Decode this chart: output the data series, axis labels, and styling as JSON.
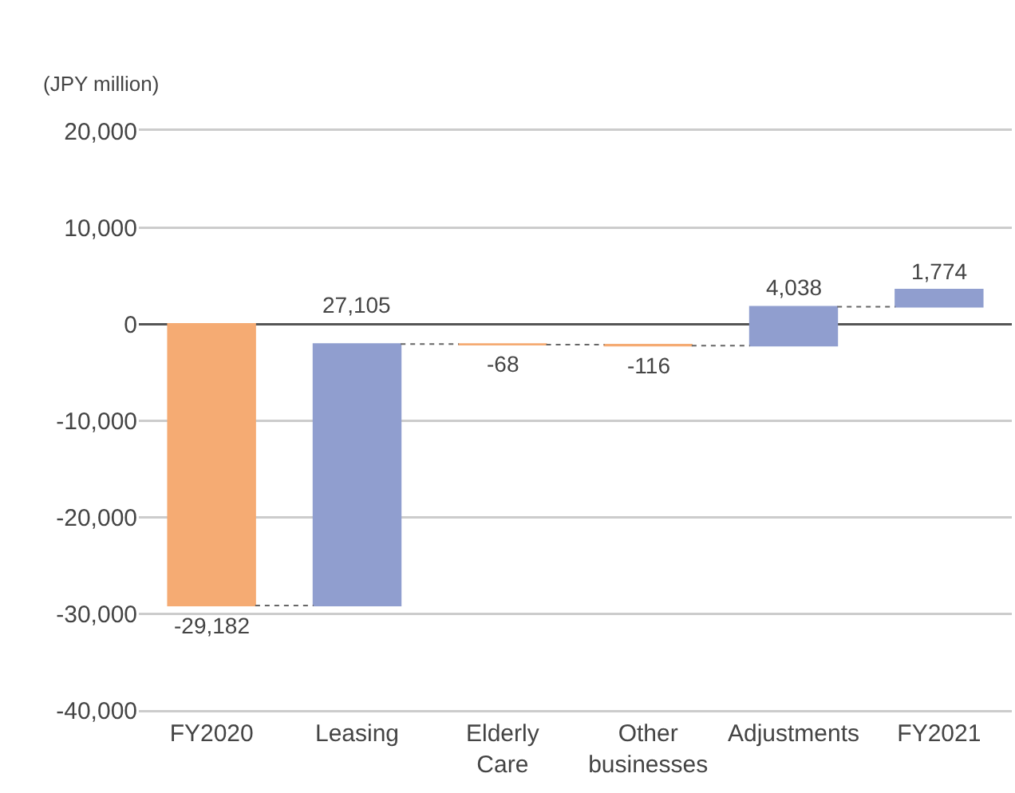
{
  "chart_data": {
    "type": "bar",
    "ylabel": "(JPY million)",
    "categories": [
      "FY2020",
      "Leasing",
      "Elderly Care",
      "Other businesses",
      "Adjustments",
      "FY2021"
    ],
    "values": [
      -29182,
      27105,
      -68,
      -116,
      4038,
      1774
    ],
    "base": [
      0,
      -29182,
      -2077,
      -2145,
      -2261,
      1777
    ],
    "colors": [
      "#f5ab73",
      "#909ecf",
      "#f5ab73",
      "#f5ab73",
      "#909ecf",
      "#909ecf"
    ],
    "value_labels": [
      "-29,182",
      "27,105",
      "-68",
      "-116",
      "4,038",
      "1,774"
    ],
    "ylim": [
      -40000,
      20000
    ],
    "yticks": [
      {
        "value": -40000,
        "label": "-40,000"
      },
      {
        "value": -30000,
        "label": "-30,000"
      },
      {
        "value": -20000,
        "label": "-20,000"
      },
      {
        "value": -10000,
        "label": "-10,000"
      },
      0,
      {
        "value": 10000,
        "label": "10,000"
      },
      {
        "value": 20000,
        "label": "20,000"
      }
    ],
    "grid": "y"
  }
}
